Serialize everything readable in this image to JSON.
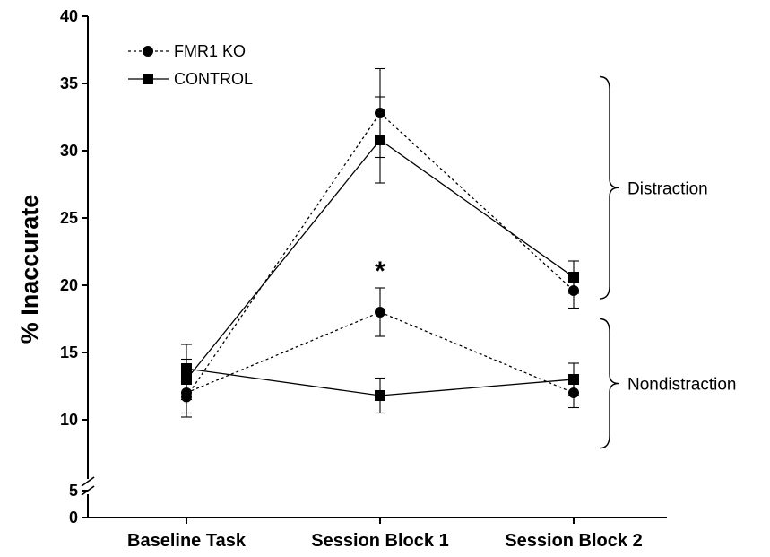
{
  "chart_data": {
    "type": "line",
    "ylabel": "% Inaccurate",
    "xlabel": "",
    "categories": [
      "Baseline Task",
      "Session Block 1",
      "Session Block 2"
    ],
    "ylim": [
      0,
      40
    ],
    "axis_break": [
      5,
      10
    ],
    "yticks": [
      0,
      5,
      10,
      15,
      20,
      25,
      30,
      35,
      40
    ],
    "legend": [
      {
        "name": "FMR1 KO",
        "marker": "circle",
        "line": "dotted"
      },
      {
        "name": "CONTROL",
        "marker": "square",
        "line": "solid"
      }
    ],
    "legend_position": "top-left",
    "series": [
      {
        "group": "FMR1 KO",
        "condition": "Distraction",
        "marker": "circle",
        "line": "dotted",
        "values": [
          11.7,
          32.8,
          19.6
        ],
        "error": [
          1.5,
          3.3,
          1.3
        ]
      },
      {
        "group": "CONTROL",
        "condition": "Distraction",
        "marker": "square",
        "line": "solid",
        "values": [
          13.0,
          30.8,
          20.6
        ],
        "error": [
          1.5,
          3.2,
          1.2
        ]
      },
      {
        "group": "FMR1 KO",
        "condition": "Nondistraction",
        "marker": "circle",
        "line": "dotted",
        "values": [
          12.0,
          18.0,
          12.0
        ],
        "error": [
          1.5,
          1.8,
          1.1
        ]
      },
      {
        "group": "CONTROL",
        "condition": "Nondistraction",
        "marker": "square",
        "line": "solid",
        "values": [
          13.8,
          11.8,
          13.0
        ],
        "error": [
          1.8,
          1.3,
          1.2
        ]
      }
    ],
    "annotations": [
      {
        "text": "Distraction",
        "range": [
          19,
          35.5
        ]
      },
      {
        "text": "Nondistraction",
        "range": [
          8,
          17.5
        ]
      },
      {
        "text": "*",
        "category": "Session Block 1",
        "y": 21.2
      }
    ],
    "grid": false
  }
}
